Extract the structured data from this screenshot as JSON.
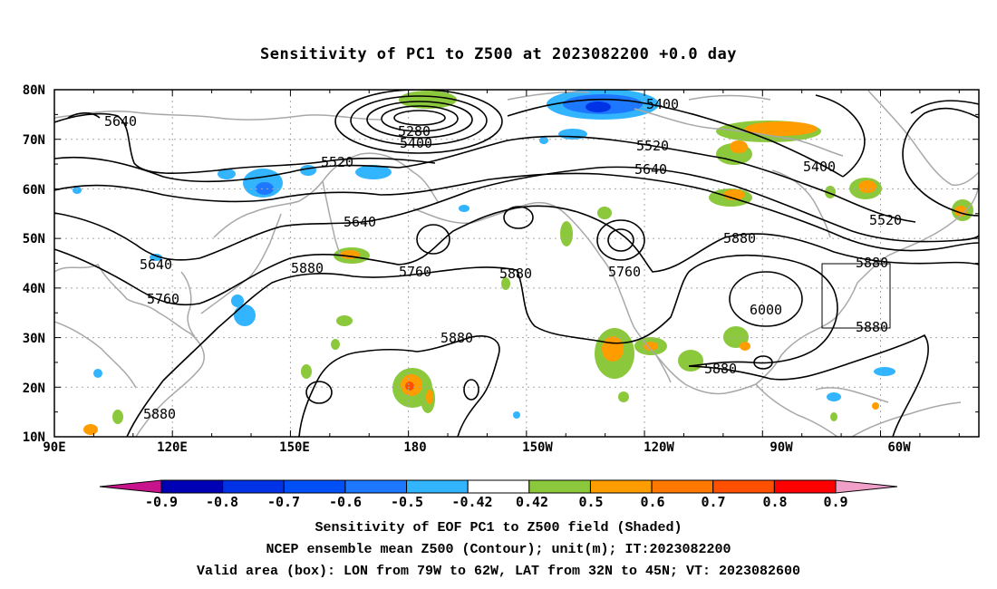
{
  "title": "Sensitivity of PC1 to Z500 at 2023082200 +0.0 day",
  "map": {
    "lat_ticks": [
      "80N",
      "70N",
      "60N",
      "50N",
      "40N",
      "30N",
      "20N",
      "10N"
    ],
    "lon_ticks": [
      "90E",
      "120E",
      "150E",
      "180",
      "150W",
      "120W",
      "90W",
      "60W"
    ],
    "lon_range_deg_east": [
      90,
      325
    ],
    "lat_range_deg": [
      10,
      80
    ],
    "grid": "dotted",
    "coastline_color": "#a8a8a8",
    "contour_labels": [
      "5640",
      "5280",
      "5400",
      "5400",
      "5520",
      "5520",
      "5640",
      "5400",
      "5520",
      "5640",
      "5640",
      "5880",
      "5760",
      "5880",
      "5760",
      "5880",
      "5880",
      "5760",
      "6000",
      "5880",
      "5880",
      "5880"
    ],
    "valid_box": {
      "lon": [
        "79W",
        "62W"
      ],
      "lat": [
        "32N",
        "45N"
      ]
    }
  },
  "colorbar": {
    "labels": [
      "-0.9",
      "-0.8",
      "-0.7",
      "-0.6",
      "-0.5",
      "-0.42",
      "0.42",
      "0.5",
      "0.6",
      "0.7",
      "0.8",
      "0.9"
    ],
    "colors": [
      "#0000b4",
      "#0032e6",
      "#0050f8",
      "#1e78ff",
      "#32b4ff",
      "#ffffff",
      "#8cc83c",
      "#ff9d00",
      "#ff7800",
      "#ff5000",
      "#ff0000"
    ],
    "low_end_color": "#c8148c",
    "high_end_color": "#f0a0c8"
  },
  "shading_colors": {
    "green": "#8cc83c",
    "orange": "#ff9d00",
    "red": "#ff5000",
    "cyan": "#32b4ff",
    "blue": "#1e78ff",
    "darkblue": "#0032e6"
  },
  "captions": [
    "Sensitivity of EOF PC1 to Z500 field (Shaded)",
    "NCEP ensemble mean Z500 (Contour); unit(m); IT:2023082200",
    "Valid area (box): LON from 79W to 62W, LAT from 32N to 45N; VT: 2023082600"
  ]
}
